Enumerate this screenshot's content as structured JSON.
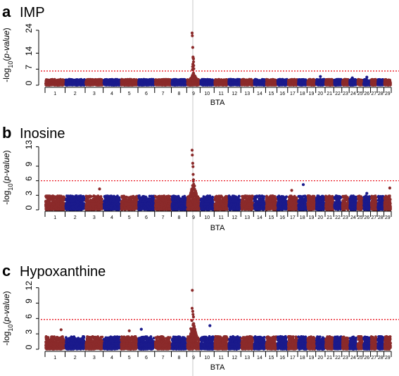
{
  "colors": {
    "odd_chromosome": "#8B2A2A",
    "even_chromosome": "#1A1A8C",
    "threshold": "#E8000B",
    "guide": "#C8C8C8"
  },
  "chart_data": [
    {
      "type": "scatter",
      "panel_letter": "a",
      "title": "IMP",
      "xlabel": "BTA",
      "ylabel": "-log10(p-value)",
      "ylabel_parts": {
        "pre": "-log",
        "sub": "10",
        "mid": "(",
        "ital": "p-value",
        "post": ")"
      },
      "yticks": [
        0,
        7,
        14,
        24
      ],
      "ylim": [
        0,
        28
      ],
      "chromosomes": [
        "1",
        "2",
        "3",
        "4",
        "5",
        "6",
        "7",
        "8",
        "9",
        "10",
        "11",
        "12",
        "13",
        "14",
        "15",
        "16",
        "17",
        "18",
        "19",
        "20",
        "21",
        "22",
        "23",
        "24",
        "25",
        "26",
        "27",
        "28",
        "29"
      ],
      "threshold": 6.2,
      "baseline": [
        0,
        2.6
      ],
      "top_points": [
        {
          "chr": "9",
          "pos": 0.4,
          "y": 22.8
        },
        {
          "chr": "9",
          "pos": 0.42,
          "y": 21.6
        },
        {
          "chr": "9",
          "pos": 0.45,
          "y": 16.5
        },
        {
          "chr": "9",
          "pos": 0.47,
          "y": 12.3
        },
        {
          "chr": "9",
          "pos": 0.48,
          "y": 11.9
        },
        {
          "chr": "9",
          "pos": 0.5,
          "y": 11.5
        },
        {
          "chr": "9",
          "pos": 0.51,
          "y": 10.2
        },
        {
          "chr": "9",
          "pos": 0.46,
          "y": 9.2
        },
        {
          "chr": "9",
          "pos": 0.52,
          "y": 8.6
        },
        {
          "chr": "9",
          "pos": 0.44,
          "y": 8.1
        },
        {
          "chr": "9",
          "pos": 0.53,
          "y": 7.2
        },
        {
          "chr": "9",
          "pos": 0.43,
          "y": 6.8
        },
        {
          "chr": "20",
          "pos": 0.5,
          "y": 3.8
        },
        {
          "chr": "24",
          "pos": 0.4,
          "y": 3.2
        },
        {
          "chr": "26",
          "pos": 0.5,
          "y": 3.5
        }
      ]
    },
    {
      "type": "scatter",
      "panel_letter": "b",
      "title": "Inosine",
      "xlabel": "BTA",
      "ylabel": "-log10(p-value)",
      "ylabel_parts": {
        "pre": "-log",
        "sub": "10",
        "mid": "(",
        "ital": "p-value",
        "post": ")"
      },
      "yticks": [
        0,
        3,
        6,
        9,
        13
      ],
      "ylim": [
        0,
        13.5
      ],
      "chromosomes": [
        "1",
        "2",
        "3",
        "4",
        "5",
        "6",
        "7",
        "8",
        "9",
        "10",
        "11",
        "12",
        "13",
        "14",
        "15",
        "16",
        "17",
        "18",
        "19",
        "20",
        "21",
        "22",
        "23",
        "24",
        "25",
        "26",
        "27",
        "28",
        "29"
      ],
      "threshold": 6.0,
      "baseline": [
        0,
        2.9
      ],
      "top_points": [
        {
          "chr": "9",
          "pos": 0.4,
          "y": 12.3
        },
        {
          "chr": "9",
          "pos": 0.42,
          "y": 11.3
        },
        {
          "chr": "9",
          "pos": 0.45,
          "y": 9.6
        },
        {
          "chr": "9",
          "pos": 0.47,
          "y": 8.9
        },
        {
          "chr": "9",
          "pos": 0.48,
          "y": 7.3
        },
        {
          "chr": "9",
          "pos": 0.5,
          "y": 6.2
        },
        {
          "chr": "9",
          "pos": 0.46,
          "y": 5.0
        },
        {
          "chr": "9",
          "pos": 0.52,
          "y": 4.4
        },
        {
          "chr": "3",
          "pos": 0.8,
          "y": 4.3
        },
        {
          "chr": "18",
          "pos": 0.6,
          "y": 5.2
        },
        {
          "chr": "17",
          "pos": 0.4,
          "y": 4.0
        },
        {
          "chr": "29",
          "pos": 0.8,
          "y": 4.5
        },
        {
          "chr": "26",
          "pos": 0.5,
          "y": 3.4
        }
      ]
    },
    {
      "type": "scatter",
      "panel_letter": "c",
      "title": "Hypoxanthine",
      "xlabel": "BTA",
      "ylabel": "-log10(p-value)",
      "ylabel_parts": {
        "pre": "-log",
        "sub": "10",
        "mid": "(",
        "ital": "p-value",
        "post": ")"
      },
      "yticks": [
        0,
        3,
        6,
        9,
        12
      ],
      "ylim": [
        0,
        12.5
      ],
      "chromosomes": [
        "1",
        "2",
        "3",
        "4",
        "5",
        "6",
        "7",
        "8",
        "9",
        "10",
        "11",
        "12",
        "13",
        "14",
        "15",
        "16",
        "17",
        "18",
        "19",
        "20",
        "21",
        "22",
        "23",
        "24",
        "25",
        "26",
        "27",
        "28",
        "29"
      ],
      "threshold": 5.8,
      "baseline": [
        0,
        2.5
      ],
      "top_points": [
        {
          "chr": "9",
          "pos": 0.42,
          "y": 11.5
        },
        {
          "chr": "9",
          "pos": 0.4,
          "y": 8.0
        },
        {
          "chr": "9",
          "pos": 0.45,
          "y": 7.4
        },
        {
          "chr": "9",
          "pos": 0.47,
          "y": 6.8
        },
        {
          "chr": "9",
          "pos": 0.5,
          "y": 6.3
        },
        {
          "chr": "9",
          "pos": 0.38,
          "y": 5.6
        },
        {
          "chr": "9",
          "pos": 0.52,
          "y": 5.0
        },
        {
          "chr": "9",
          "pos": 0.55,
          "y": 4.5
        },
        {
          "chr": "9",
          "pos": 0.3,
          "y": 4.0
        },
        {
          "chr": "10",
          "pos": 0.7,
          "y": 4.6
        },
        {
          "chr": "1",
          "pos": 0.8,
          "y": 3.8
        },
        {
          "chr": "6",
          "pos": 0.2,
          "y": 3.9
        },
        {
          "chr": "5",
          "pos": 0.5,
          "y": 3.6
        }
      ]
    }
  ]
}
